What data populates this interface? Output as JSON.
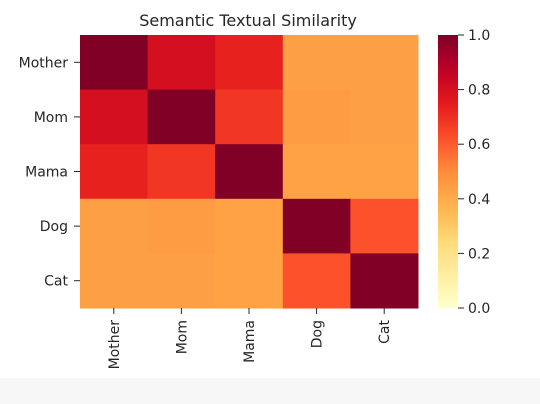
{
  "chart_data": {
    "type": "heatmap",
    "title": "Semantic Textual Similarity",
    "row_labels": [
      "Mother",
      "Mom",
      "Mama",
      "Dog",
      "Cat"
    ],
    "col_labels": [
      "Mother",
      "Mom",
      "Mama",
      "Dog",
      "Cat"
    ],
    "values": [
      [
        1.0,
        0.8,
        0.73,
        0.44,
        0.44
      ],
      [
        0.8,
        1.0,
        0.68,
        0.45,
        0.44
      ],
      [
        0.73,
        0.68,
        1.0,
        0.43,
        0.43
      ],
      [
        0.44,
        0.45,
        0.43,
        1.0,
        0.62
      ],
      [
        0.44,
        0.44,
        0.43,
        0.62,
        1.0
      ]
    ],
    "colormap": "YlOrRd",
    "vmin": 0.0,
    "vmax": 1.0,
    "colorbar_ticks": [
      "0.0",
      "0.2",
      "0.4",
      "0.6",
      "0.8",
      "1.0"
    ],
    "grid": false
  }
}
